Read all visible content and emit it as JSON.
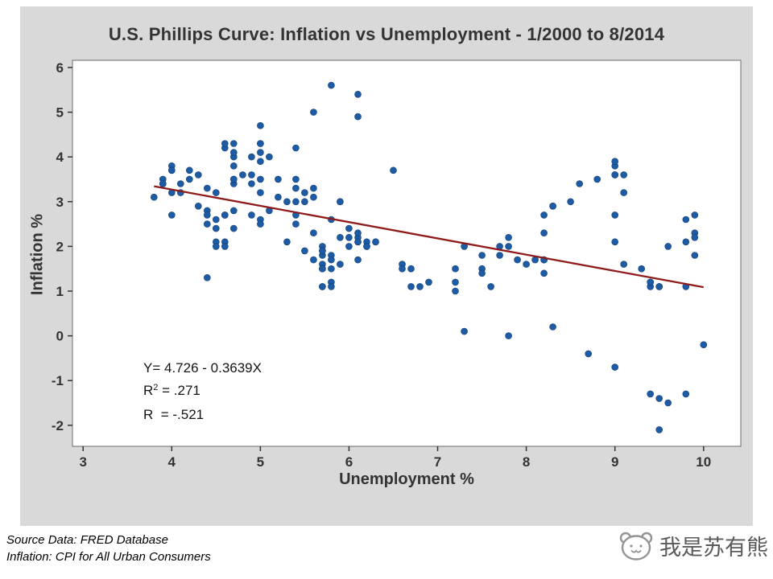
{
  "chart_data": {
    "type": "scatter",
    "title": "U.S. Phillips Curve: Inflation vs Unemployment - 1/2000 to 8/2014",
    "xlabel": "Unemployment %",
    "ylabel": "Inflation %",
    "xlim": [
      2.88,
      10.42
    ],
    "ylim": [
      -2.47,
      6.16
    ],
    "xticks": [
      3,
      4,
      5,
      6,
      7,
      8,
      9,
      10
    ],
    "yticks": [
      6,
      5,
      4,
      3,
      2,
      1,
      0,
      -1,
      -2
    ],
    "grid": false,
    "point_color": "#1d5ba4",
    "point_edge_color": "#143f75",
    "line_color": "#8f1a1a",
    "regression": {
      "intercept": 4.726,
      "slope": -0.3639,
      "x_start": 3.8,
      "x_end": 10.0
    },
    "annotation": {
      "line1": "Y= 4.726 - 0.3639X",
      "r2_prefix": "R",
      "r2_sup": "2",
      "r2_rest": " = .271",
      "line3": "R  = -.521"
    },
    "points": [
      [
        4.0,
        2.7
      ],
      [
        4.1,
        3.2
      ],
      [
        4.0,
        3.8
      ],
      [
        3.8,
        3.1
      ],
      [
        4.0,
        3.2
      ],
      [
        4.0,
        3.7
      ],
      [
        4.0,
        3.7
      ],
      [
        4.1,
        3.4
      ],
      [
        3.9,
        3.5
      ],
      [
        3.9,
        3.4
      ],
      [
        3.9,
        3.4
      ],
      [
        3.9,
        3.4
      ],
      [
        4.2,
        3.7
      ],
      [
        4.2,
        3.5
      ],
      [
        4.3,
        2.9
      ],
      [
        4.4,
        3.3
      ],
      [
        4.3,
        3.6
      ],
      [
        4.5,
        3.2
      ],
      [
        4.6,
        2.7
      ],
      [
        4.9,
        2.7
      ],
      [
        5.0,
        2.6
      ],
      [
        5.3,
        2.1
      ],
      [
        5.5,
        1.9
      ],
      [
        5.7,
        1.6
      ],
      [
        5.7,
        1.1
      ],
      [
        5.7,
        1.1
      ],
      [
        5.7,
        1.5
      ],
      [
        5.9,
        1.6
      ],
      [
        5.8,
        1.2
      ],
      [
        5.8,
        1.1
      ],
      [
        5.8,
        1.5
      ],
      [
        5.7,
        1.8
      ],
      [
        5.7,
        1.5
      ],
      [
        5.7,
        2.0
      ],
      [
        5.9,
        2.2
      ],
      [
        6.0,
        2.4
      ],
      [
        5.8,
        2.6
      ],
      [
        5.9,
        3.0
      ],
      [
        5.9,
        3.0
      ],
      [
        6.0,
        2.2
      ],
      [
        6.1,
        2.1
      ],
      [
        6.3,
        2.1
      ],
      [
        6.2,
        2.1
      ],
      [
        6.1,
        2.2
      ],
      [
        6.1,
        2.3
      ],
      [
        6.0,
        2.0
      ],
      [
        5.8,
        1.8
      ],
      [
        5.7,
        1.9
      ],
      [
        5.7,
        1.9
      ],
      [
        5.6,
        1.7
      ],
      [
        5.8,
        1.7
      ],
      [
        5.6,
        2.3
      ],
      [
        5.6,
        3.1
      ],
      [
        5.6,
        3.3
      ],
      [
        5.5,
        3.0
      ],
      [
        5.4,
        2.7
      ],
      [
        5.4,
        2.5
      ],
      [
        5.5,
        3.2
      ],
      [
        5.4,
        3.5
      ],
      [
        5.4,
        3.3
      ],
      [
        5.3,
        3.0
      ],
      [
        5.4,
        3.0
      ],
      [
        5.2,
        3.1
      ],
      [
        5.2,
        3.5
      ],
      [
        5.1,
        2.8
      ],
      [
        5.0,
        2.5
      ],
      [
        5.0,
        3.2
      ],
      [
        4.9,
        3.6
      ],
      [
        5.0,
        4.7
      ],
      [
        5.0,
        4.3
      ],
      [
        5.0,
        3.5
      ],
      [
        4.9,
        3.4
      ],
      [
        4.7,
        4.0
      ],
      [
        4.8,
        3.6
      ],
      [
        4.7,
        3.4
      ],
      [
        4.7,
        3.5
      ],
      [
        4.6,
        4.2
      ],
      [
        4.6,
        4.3
      ],
      [
        4.7,
        4.1
      ],
      [
        4.7,
        3.8
      ],
      [
        4.5,
        2.1
      ],
      [
        4.4,
        1.3
      ],
      [
        4.5,
        2.0
      ],
      [
        4.4,
        2.5
      ],
      [
        4.6,
        2.1
      ],
      [
        4.5,
        2.4
      ],
      [
        4.4,
        2.8
      ],
      [
        4.5,
        2.6
      ],
      [
        4.4,
        2.7
      ],
      [
        4.6,
        2.7
      ],
      [
        4.7,
        2.4
      ],
      [
        4.6,
        2.0
      ],
      [
        4.7,
        2.8
      ],
      [
        4.7,
        3.5
      ],
      [
        4.7,
        4.3
      ],
      [
        5.0,
        4.1
      ],
      [
        5.0,
        4.3
      ],
      [
        4.9,
        4.0
      ],
      [
        5.1,
        4.0
      ],
      [
        5.0,
        3.9
      ],
      [
        5.4,
        4.2
      ],
      [
        5.6,
        5.0
      ],
      [
        5.8,
        5.6
      ],
      [
        6.1,
        5.4
      ],
      [
        6.1,
        4.9
      ],
      [
        6.5,
        3.7
      ],
      [
        6.8,
        1.1
      ],
      [
        7.3,
        0.1
      ],
      [
        7.8,
        0.0
      ],
      [
        8.3,
        0.2
      ],
      [
        8.7,
        -0.4
      ],
      [
        9.0,
        -0.7
      ],
      [
        9.4,
        -1.3
      ],
      [
        9.5,
        -1.4
      ],
      [
        9.5,
        -2.1
      ],
      [
        9.6,
        -1.5
      ],
      [
        9.8,
        -1.3
      ],
      [
        10.0,
        -0.2
      ],
      [
        9.9,
        1.8
      ],
      [
        9.9,
        2.7
      ],
      [
        9.8,
        2.6
      ],
      [
        9.8,
        2.1
      ],
      [
        9.9,
        2.3
      ],
      [
        9.9,
        2.2
      ],
      [
        9.6,
        2.0
      ],
      [
        9.4,
        1.1
      ],
      [
        9.4,
        1.2
      ],
      [
        9.5,
        1.1
      ],
      [
        9.5,
        1.1
      ],
      [
        9.4,
        1.2
      ],
      [
        9.8,
        1.1
      ],
      [
        9.3,
        1.5
      ],
      [
        9.1,
        1.6
      ],
      [
        9.0,
        2.1
      ],
      [
        9.0,
        2.7
      ],
      [
        9.1,
        3.2
      ],
      [
        9.0,
        3.6
      ],
      [
        9.1,
        3.6
      ],
      [
        9.0,
        3.6
      ],
      [
        9.0,
        3.8
      ],
      [
        9.0,
        3.9
      ],
      [
        8.8,
        3.5
      ],
      [
        8.6,
        3.4
      ],
      [
        8.5,
        3.0
      ],
      [
        8.3,
        2.9
      ],
      [
        8.3,
        2.9
      ],
      [
        8.2,
        2.7
      ],
      [
        8.2,
        2.3
      ],
      [
        8.2,
        1.7
      ],
      [
        8.2,
        1.7
      ],
      [
        8.2,
        1.4
      ],
      [
        8.1,
        1.7
      ],
      [
        7.8,
        2.0
      ],
      [
        7.8,
        2.2
      ],
      [
        7.7,
        1.8
      ],
      [
        7.9,
        1.7
      ],
      [
        8.0,
        1.6
      ],
      [
        7.7,
        2.0
      ],
      [
        7.5,
        1.5
      ],
      [
        7.6,
        1.1
      ],
      [
        7.5,
        1.4
      ],
      [
        7.5,
        1.8
      ],
      [
        7.3,
        2.0
      ],
      [
        7.2,
        1.5
      ],
      [
        7.2,
        1.2
      ],
      [
        7.2,
        1.0
      ],
      [
        6.9,
        1.2
      ],
      [
        6.7,
        1.5
      ],
      [
        6.6,
        1.6
      ],
      [
        6.7,
        1.1
      ],
      [
        6.6,
        1.5
      ],
      [
        6.2,
        2.0
      ],
      [
        6.3,
        2.1
      ],
      [
        6.1,
        2.1
      ],
      [
        6.2,
        2.0
      ],
      [
        6.1,
        1.7
      ]
    ]
  },
  "footer": {
    "line1": "Source Data:  FRED Database",
    "line2": "Inflation:  CPI for All Urban Consumers"
  },
  "watermark": {
    "text": "我是苏有熊"
  }
}
